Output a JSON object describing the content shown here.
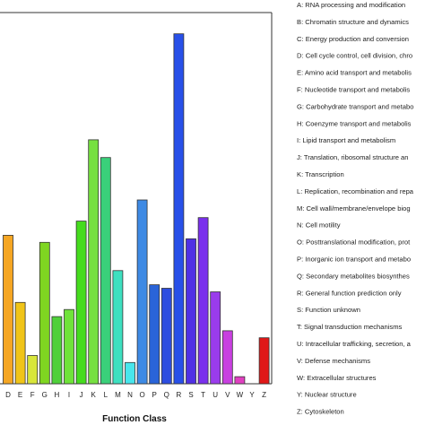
{
  "chart_data": {
    "type": "bar",
    "xlabel": "Function Class",
    "ylabel": "",
    "grid": false,
    "legend_placement": "right",
    "categories": [
      "D",
      "E",
      "F",
      "G",
      "H",
      "I",
      "J",
      "K",
      "L",
      "M",
      "N",
      "O",
      "P",
      "Q",
      "R",
      "S",
      "T",
      "U",
      "V",
      "W",
      "Y",
      "Z"
    ],
    "values": [
      42,
      23,
      8,
      40,
      19,
      21,
      46,
      69,
      64,
      32,
      6,
      52,
      28,
      27,
      99,
      41,
      47,
      26,
      15,
      2,
      0,
      13
    ],
    "colors": [
      "#f5a623",
      "#f0c418",
      "#d8e63a",
      "#7fd621",
      "#4fd03a",
      "#6fe33a",
      "#45dc1e",
      "#76e040",
      "#3ad07a",
      "#3ee0c0",
      "#48e6ec",
      "#3e8ae4",
      "#2a64d8",
      "#2d4de0",
      "#2850e8",
      "#5030e4",
      "#7a30ec",
      "#9a3cec",
      "#c840e0",
      "#e040c0",
      "#e02a90",
      "#e01818"
    ],
    "ylim": [
      0,
      105
    ],
    "legend": [
      "A: RNA processing and modification",
      "B: Chromatin structure and dynamics",
      "C: Energy production and conversion",
      "D: Cell cycle control, cell division, chro",
      "E: Amino acid transport and metabolis",
      "F: Nucleotide transport and metabolis",
      "G: Carbohydrate transport and metabo",
      "H: Coenzyme transport and metabolis",
      "I: Lipid transport and metabolism",
      "J: Translation, ribosomal structure an",
      "K: Transcription",
      "L: Replication, recombination and repa",
      "M: Cell wall/membrane/envelope biog",
      "N: Cell motility",
      "O: Posttranslational modification, prot",
      "P: Inorganic ion transport and metabo",
      "Q: Secondary metabolites biosynthes",
      "R: General function prediction only",
      "S: Function unknown",
      "T: Signal transduction mechanisms",
      "U: Intracellular trafficking, secretion, a",
      "V: Defense mechanisms",
      "W: Extracellular structures",
      "Y: Nuclear structure",
      "Z: Cytoskeleton"
    ]
  }
}
